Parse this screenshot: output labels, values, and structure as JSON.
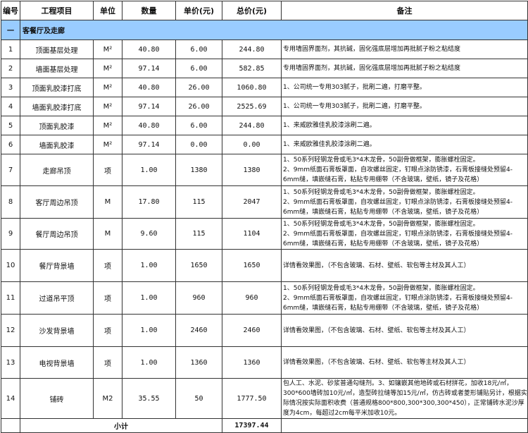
{
  "headers": [
    "编号",
    "工程项目",
    "单位",
    "数量",
    "单价(元)",
    "总价(元)",
    "备注"
  ],
  "section": {
    "no": "一",
    "title": "客餐厅及走廊"
  },
  "rows": [
    {
      "no": "1",
      "item": "顶面基层处理",
      "unit": "M²",
      "qty": "40.80",
      "price": "6.00",
      "total": "244.80",
      "note": "专用墙固界面剂，其抗碱，固化强底层增加再批腻子粉之粘结度"
    },
    {
      "no": "2",
      "item": "墙面基层处理",
      "unit": "M²",
      "qty": "97.14",
      "price": "6.00",
      "total": "582.85",
      "note": "专用墙固界面剂，其抗碱，固化强底层增加再批腻子粉之粘结度"
    },
    {
      "no": "3",
      "item": "顶面乳胶漆打底",
      "unit": "M²",
      "qty": "40.80",
      "price": "26.00",
      "total": "1060.80",
      "note": "1、公司统一专用303腻子，批刷二遍，打磨平整。"
    },
    {
      "no": "4",
      "item": "墙面乳胶漆打底",
      "unit": "M²",
      "qty": "97.14",
      "price": "26.00",
      "total": "2525.69",
      "note": "1、公司统一专用303腻子，批刷二遍，打磨平整。"
    },
    {
      "no": "5",
      "item": "顶面乳胶漆",
      "unit": "M²",
      "qty": "40.80",
      "price": "6.00",
      "total": "244.80",
      "note": "1、来威欧雅佳乳胶漆涂刷二遍。"
    },
    {
      "no": "6",
      "item": "墙面乳胶漆",
      "unit": "M²",
      "qty": "97.14",
      "price": "0.00",
      "total": "0.00",
      "note": "1、来威欧雅佳乳胶漆涂刷二遍。"
    },
    {
      "no": "7",
      "item": "走廊吊顶",
      "unit": "项",
      "qty": "1.00",
      "price": "1380",
      "total": "1380",
      "note": "1、50系列轻钢龙骨或毛3*4木龙骨，50副骨做框架，膨胀螺栓固定。\n2、9mm纸面石膏板罩面，自攻螺丝固定，钉眼点涂防锈漆，石膏板接缝处预留4-6mm缝，填嵌缝石膏，粘贴专用绷带（不含玻璃，壁纸，镜子及花格）"
    },
    {
      "no": "8",
      "item": "客厅周边吊顶",
      "unit": "M",
      "qty": "17.80",
      "price": "115",
      "total": "2047",
      "note": "1、50系列轻钢龙骨或毛3*4木龙骨，50副骨做框架，膨胀螺栓固定。\n2、9mm纸面石膏板罩面，自攻螺丝固定，钉眼点涂防锈漆，石膏板接缝处预留4-6mm缝，填嵌缝石膏，粘贴专用绷带（不含玻璃，壁纸，镜子及花格）"
    },
    {
      "no": "9",
      "item": "餐厅周边吊顶",
      "unit": "M",
      "qty": "9.60",
      "price": "115",
      "total": "1104",
      "note": "1、50系列轻钢龙骨或毛3*4木龙骨，50副骨做框架，膨胀螺栓固定。\n2、9mm纸面石膏板罩面，自攻螺丝固定，钉眼点涂防锈漆，石膏板接缝处预留4-6mm缝，填嵌缝石膏，粘贴专用绷带（不含玻璃，壁纸，镜子及花格）"
    },
    {
      "no": "10",
      "item": "餐厅背景墙",
      "unit": "项",
      "qty": "1.00",
      "price": "1650",
      "total": "1650",
      "note": "详情看效果图，（不包含玻璃、石材、壁纸、软包等主材及其人工）"
    },
    {
      "no": "11",
      "item": "过道吊平顶",
      "unit": "项",
      "qty": "1.00",
      "price": "960",
      "total": "960",
      "note": "1、50系列轻钢龙骨或毛3*4木龙骨，50副骨做框架，膨胀螺栓固定。\n2、9mm纸面石膏板罩面，自攻螺丝固定，钉眼点涂防锈漆，石膏板接缝处预留4-6mm缝，填嵌缝石膏，粘贴专用绷带（不含玻璃，壁纸，镜子及花格）"
    },
    {
      "no": "12",
      "item": "沙发背景墙",
      "unit": "项",
      "qty": "1.00",
      "price": "2460",
      "total": "2460",
      "note": "详情看效果图，（不包含玻璃、石材、壁纸、软包等主材及其人工）"
    },
    {
      "no": "13",
      "item": "电视背景墙",
      "unit": "项",
      "qty": "1.00",
      "price": "1360",
      "total": "1360",
      "note": "详情看效果图，（不包含玻璃、石材、壁纸、软包等主材及其人工）"
    },
    {
      "no": "14",
      "item": "铺砖",
      "unit": "M2",
      "qty": "35.55",
      "price": "50",
      "total": "1777.50",
      "note": "包人工、水泥、砂浆普通勾缝剂。3、如镶嵌其他地砖或石材拼花，加收18元/㎡，300*600墙砖加10元/㎡，造型砖拉缝等加15元/㎡，仿古砖或者菱形铺贴另计，根据实际情况按实际面积收费（普通规格800*800,300*300,300*450），正常铺砖水泥沙厚度为4cm，每超过2cm每平米加收10元。"
    }
  ],
  "subtotal": {
    "label": "小计",
    "total": "17397.44"
  }
}
